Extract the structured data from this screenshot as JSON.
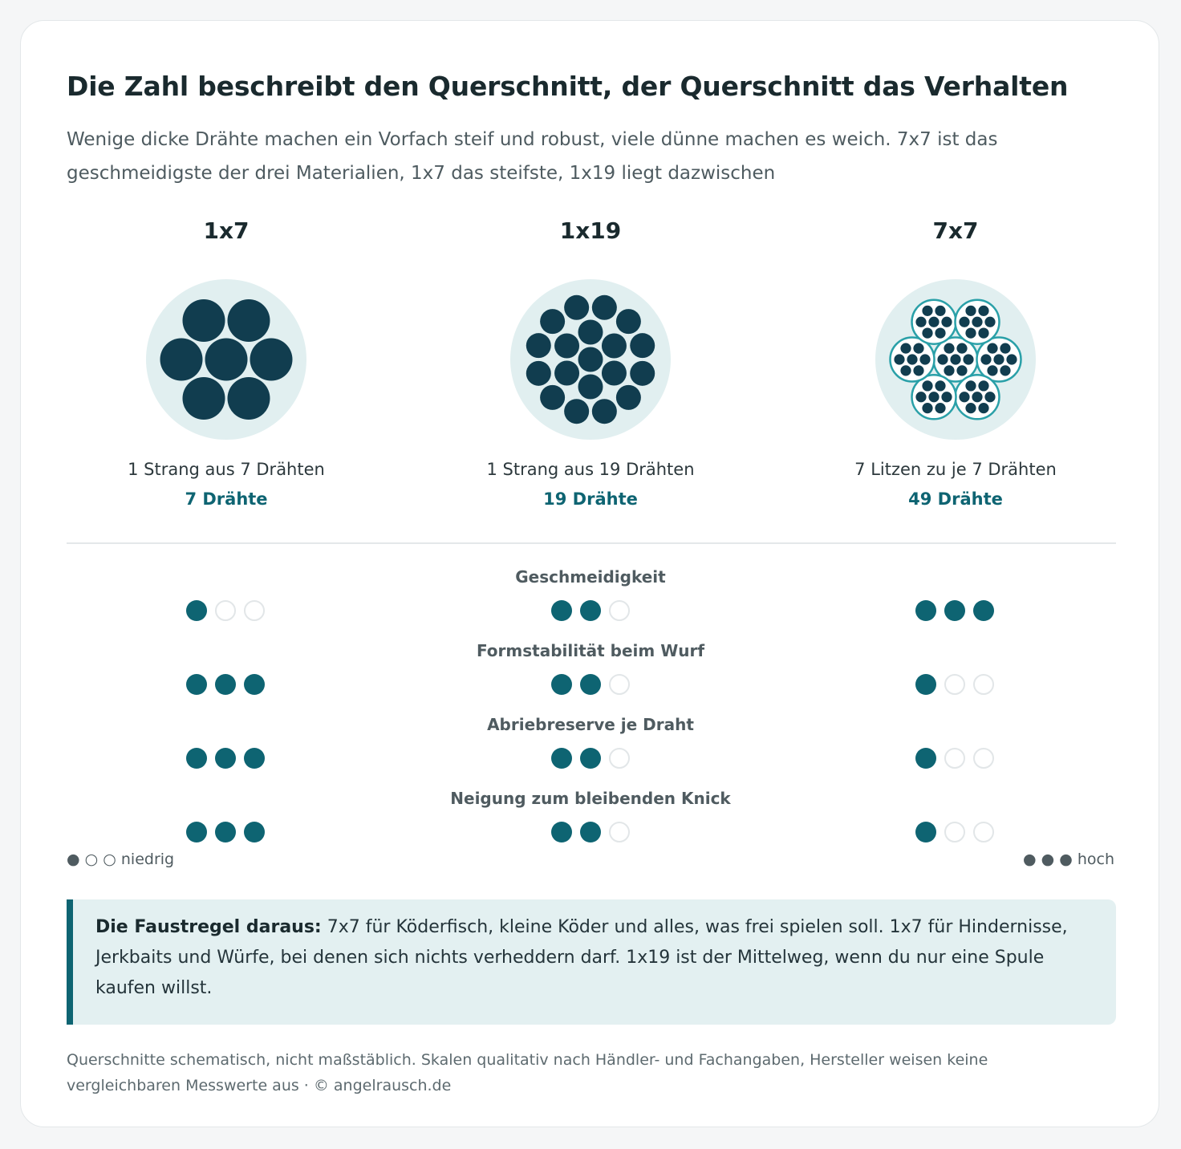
{
  "header": {
    "title": "Die Zahl beschreibt den Querschnitt, der Querschnitt das Verhalten",
    "subtitle": "Wenige dicke Drähte machen ein Vorfach steif und robust, viele dünne machen es weich. 7x7 ist das geschmeidigste der drei Materialien, 1x7 das steifste, 1x19 liegt dazwischen"
  },
  "colors": {
    "wire": "#113d4f",
    "accent": "#0e6472",
    "strand_ring": "#2aa0a8",
    "circle_bg": "#e1eff0",
    "dot_off": "#e2e6e8"
  },
  "columns": [
    {
      "name": "1x7",
      "description": "1 Strang aus 7 Drähten",
      "count": "7 Drähte"
    },
    {
      "name": "1x19",
      "description": "1 Strang aus 19 Drähten",
      "count": "19 Drähte"
    },
    {
      "name": "7x7",
      "description": "7 Litzen zu je 7 Drähten",
      "count": "49 Drähte"
    }
  ],
  "metrics": [
    {
      "label": "Geschmeidigkeit",
      "ratings": [
        1,
        2,
        3
      ]
    },
    {
      "label": "Formstabilität beim Wurf",
      "ratings": [
        3,
        2,
        1
      ]
    },
    {
      "label": "Abriebreserve je Draht",
      "ratings": [
        3,
        2,
        1
      ]
    },
    {
      "label": "Neigung zum bleibenden Knick",
      "ratings": [
        3,
        2,
        1
      ]
    }
  ],
  "rating_max": 3,
  "legend": {
    "low_symbols": "● ○ ○",
    "low_label": "niedrig",
    "high_symbols": "● ● ●",
    "high_label": "hoch"
  },
  "callout": {
    "lead": "Die Faustregel daraus:",
    "text": " 7x7 für Köderfisch, kleine Köder und alles, was frei spielen soll. 1x7 für Hindernisse, Jerkbaits und Würfe, bei denen sich nichts verheddern darf. 1x19 ist der Mittelweg, wenn du nur eine Spule kaufen willst."
  },
  "footnote": "Querschnitte schematisch, nicht maßstäblich. Skalen qualitativ nach Händler- und Fachangaben, Hersteller weisen keine vergleichbaren Messwerte aus · © angelrausch.de"
}
